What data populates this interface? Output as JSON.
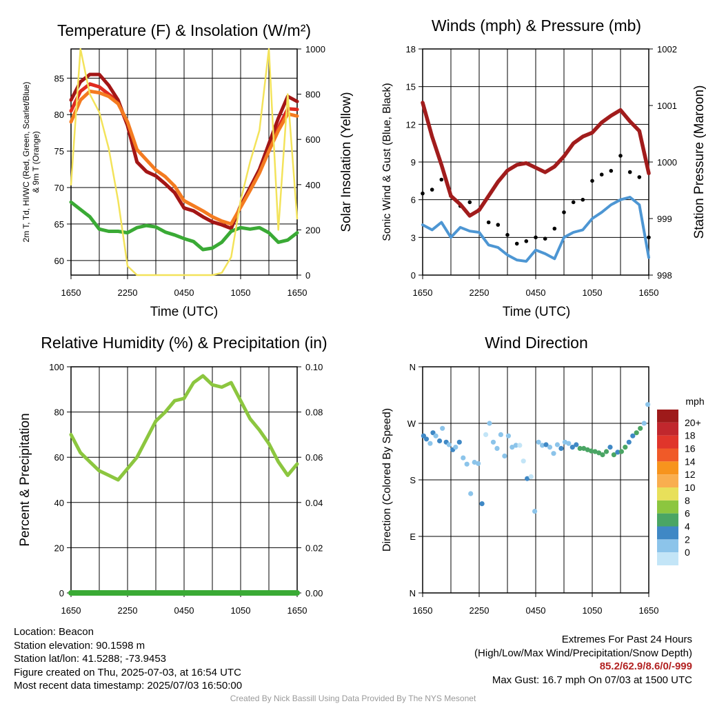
{
  "panels": {
    "temp": {
      "title": "Temperature (F) & Insolation (W/m²)",
      "xlabel": "Time (UTC)",
      "ylabel_left_line1": "2m T, Td, HI/WC (Red, Green, Scarlet/Blue)",
      "ylabel_left_line2": "& 9m T (Orange)",
      "ylabel_right": "Solar Insolation (Yellow)"
    },
    "wind": {
      "title": "Winds (mph) & Pressure (mb)",
      "xlabel": "Time (UTC)",
      "ylabel_left": "Sonic Wind & Gust (Blue, Black)",
      "ylabel_right": "Station Pressure (Maroon)"
    },
    "rh": {
      "title": "Relative Humidity (%) & Precipitation (in)",
      "ylabel_left": "Percent & Precipitation"
    },
    "dir": {
      "title": "Wind Direction",
      "ylabel_left": "Direction (Colored By Speed)",
      "legend_title": "mph"
    }
  },
  "chart_data": [
    {
      "type": "line",
      "title": "Temperature (F) & Insolation (W/m²)",
      "xlabel": "Time (UTC)",
      "x_ticks": [
        "1650",
        "2250",
        "0450",
        "1050",
        "1650"
      ],
      "ylim": [
        58,
        89
      ],
      "y_ticks": [
        60,
        65,
        70,
        75,
        80,
        85
      ],
      "y2lim": [
        0,
        1000
      ],
      "y2_ticks": [
        0,
        200,
        400,
        600,
        800,
        1000
      ],
      "x_hours": [
        0,
        1,
        2,
        3,
        4,
        5,
        6,
        7,
        8,
        9,
        10,
        11,
        12,
        13,
        14,
        15,
        16,
        17,
        18,
        19,
        20,
        21,
        22,
        23,
        24
      ],
      "series": [
        {
          "name": "2m T",
          "color": "#e02b20",
          "axis": "left",
          "values": [
            80.5,
            83.2,
            84.2,
            83.8,
            82.8,
            81.8,
            78.5,
            73.5,
            72.2,
            71.6,
            70.5,
            69.3,
            67.2,
            66.8,
            66.0,
            65.3,
            64.9,
            64.4,
            67.5,
            70.0,
            72.2,
            75.6,
            78.2,
            80.8,
            80.7
          ]
        },
        {
          "name": "HI/WC",
          "color": "#a31616",
          "axis": "left",
          "values": [
            82.0,
            84.5,
            85.5,
            85.5,
            84.0,
            82.0,
            78.5,
            73.5,
            72.2,
            71.6,
            70.5,
            69.3,
            67.2,
            66.8,
            66.0,
            65.3,
            64.9,
            64.4,
            67.5,
            70.0,
            72.5,
            76.0,
            79.5,
            82.5,
            81.8
          ]
        },
        {
          "name": "9m T",
          "color": "#f47b20",
          "axis": "left",
          "values": [
            79.0,
            82.0,
            83.2,
            83.0,
            82.5,
            81.5,
            79.0,
            75.2,
            73.8,
            72.4,
            71.5,
            70.2,
            68.2,
            67.5,
            66.8,
            66.0,
            65.4,
            65.0,
            67.3,
            69.6,
            72.0,
            75.0,
            77.8,
            80.1,
            79.8
          ]
        },
        {
          "name": "Td",
          "color": "#3aaa35",
          "axis": "left",
          "values": [
            68.0,
            67.0,
            66.0,
            64.3,
            64.0,
            64.0,
            63.8,
            64.5,
            64.8,
            64.6,
            63.9,
            63.5,
            63.0,
            62.6,
            61.5,
            61.7,
            62.5,
            64.0,
            64.5,
            64.3,
            64.5,
            63.8,
            62.5,
            62.8,
            63.8
          ]
        },
        {
          "name": "Solar Insolation",
          "color": "#f3e35a",
          "axis": "right",
          "values": [
            400,
            1000,
            800,
            720,
            560,
            330,
            40,
            0,
            0,
            0,
            0,
            0,
            0,
            0,
            0,
            0,
            10,
            80,
            330,
            500,
            640,
            1000,
            200,
            800,
            250
          ]
        }
      ]
    },
    {
      "type": "line",
      "title": "Winds (mph) & Pressure (mb)",
      "xlabel": "Time (UTC)",
      "x_ticks": [
        "1650",
        "2250",
        "0450",
        "1050",
        "1650"
      ],
      "ylim": [
        0,
        18
      ],
      "y_ticks": [
        0,
        3,
        6,
        9,
        12,
        15,
        18
      ],
      "y2lim": [
        998,
        1002
      ],
      "y2_ticks": [
        998,
        999,
        1000,
        1001,
        1002
      ],
      "x_hours": [
        0,
        1,
        2,
        3,
        4,
        5,
        6,
        7,
        8,
        9,
        10,
        11,
        12,
        13,
        14,
        15,
        16,
        17,
        18,
        19,
        20,
        21,
        22,
        23,
        24
      ],
      "series": [
        {
          "name": "Sonic Wind",
          "color": "#4d96d3",
          "axis": "left",
          "values": [
            4.0,
            3.6,
            4.2,
            3.0,
            3.8,
            3.5,
            3.4,
            2.4,
            2.2,
            1.6,
            1.2,
            1.1,
            2.0,
            1.7,
            1.3,
            3.0,
            3.4,
            3.6,
            4.5,
            5.0,
            5.6,
            6.0,
            6.2,
            5.6,
            1.4
          ]
        },
        {
          "name": "Gust",
          "color": "#000000",
          "axis": "left",
          "values": [
            6.5,
            6.8,
            7.6,
            6.3,
            5.5,
            5.8,
            5.2,
            4.2,
            4.0,
            3.2,
            2.5,
            2.7,
            3.0,
            2.9,
            3.7,
            5.0,
            5.8,
            6.0,
            7.5,
            8.0,
            8.3,
            9.5,
            8.2,
            7.8,
            3.0
          ]
        },
        {
          "name": "Station Pressure",
          "color": "#a11c1c",
          "axis": "right",
          "values": [
            1001.05,
            1000.45,
            999.95,
            999.4,
            999.25,
            999.05,
            999.15,
            999.4,
            999.65,
            999.85,
            999.95,
            999.98,
            999.9,
            999.82,
            999.92,
            1000.1,
            1000.33,
            1000.45,
            1000.52,
            1000.7,
            1000.82,
            1000.92,
            1000.72,
            1000.55,
            999.8
          ]
        }
      ]
    },
    {
      "type": "line",
      "title": "Relative Humidity (%) & Precipitation (in)",
      "x_ticks": [
        "1650",
        "2250",
        "0450",
        "1050",
        "1650"
      ],
      "ylim": [
        0,
        100
      ],
      "y_ticks": [
        0,
        20,
        40,
        60,
        80,
        100
      ],
      "y2lim": [
        0,
        0.1
      ],
      "y2_ticks": [
        "0.00",
        "0.02",
        "0.04",
        "0.06",
        "0.08",
        "0.10"
      ],
      "x_hours": [
        0,
        1,
        2,
        3,
        4,
        5,
        6,
        7,
        8,
        9,
        10,
        11,
        12,
        13,
        14,
        15,
        16,
        17,
        18,
        19,
        20,
        21,
        22,
        23,
        24
      ],
      "series": [
        {
          "name": "Relative Humidity",
          "color": "#8cc63f",
          "axis": "left",
          "values": [
            70,
            62,
            58,
            54,
            52,
            50,
            55,
            60,
            68,
            76,
            80,
            85,
            86,
            93,
            96,
            92,
            91,
            93,
            85,
            77,
            72,
            66,
            58,
            52,
            57
          ]
        },
        {
          "name": "Precipitation",
          "color": "#3aaa35",
          "axis": "right",
          "values": [
            0,
            0,
            0,
            0,
            0,
            0,
            0,
            0,
            0,
            0,
            0,
            0,
            0,
            0,
            0,
            0,
            0,
            0,
            0,
            0,
            0,
            0,
            0,
            0,
            0
          ]
        }
      ]
    },
    {
      "type": "scatter",
      "title": "Wind Direction",
      "x_ticks": [
        "1650",
        "2250",
        "0450",
        "1050",
        "1650"
      ],
      "y_ticks": [
        "N",
        "E",
        "S",
        "W",
        "N"
      ],
      "ylim": [
        0,
        360
      ],
      "colorbar": {
        "title": "mph",
        "labels": [
          "20+",
          "18",
          "16",
          "14",
          "12",
          "10",
          "8",
          "6",
          "4",
          "2",
          "0"
        ],
        "colors": [
          "#9e1a1a",
          "#c1272d",
          "#e0352b",
          "#f05a28",
          "#f7941d",
          "#f9ae4f",
          "#e8e05a",
          "#8cc63f",
          "#4aa564",
          "#3f88c5",
          "#8cc4ea",
          "#c3e5f7"
        ]
      },
      "series": [
        {
          "name": "Wind Direction",
          "x_hours": [
            0.1,
            0.4,
            0.8,
            1.1,
            1.4,
            1.8,
            2.1,
            2.5,
            2.8,
            3.2,
            3.5,
            3.9,
            4.3,
            4.7,
            5.1,
            5.5,
            5.9,
            6.3,
            6.7,
            7.1,
            7.5,
            7.9,
            8.3,
            8.7,
            9.1,
            9.5,
            9.9,
            10.3,
            10.7,
            11.1,
            11.5,
            11.9,
            12.3,
            12.7,
            13.1,
            13.5,
            13.9,
            14.3,
            14.7,
            15.1,
            15.5,
            15.9,
            16.3,
            16.7,
            17.1,
            17.5,
            17.9,
            18.3,
            18.7,
            19.1,
            19.5,
            19.9,
            20.3,
            20.7,
            21.1,
            21.5,
            21.9,
            22.3,
            22.7,
            23.1,
            23.5,
            23.9
          ],
          "directions": [
            250,
            245,
            238,
            255,
            250,
            242,
            262,
            240,
            236,
            228,
            232,
            240,
            215,
            205,
            158,
            208,
            206,
            142,
            252,
            270,
            240,
            230,
            252,
            218,
            250,
            232,
            235,
            235,
            210,
            182,
            185,
            130,
            240,
            235,
            236,
            232,
            222,
            236,
            230,
            240,
            238,
            232,
            236,
            230,
            230,
            228,
            226,
            225,
            223,
            220,
            225,
            232,
            220,
            224,
            225,
            232,
            240,
            250,
            255,
            262,
            270,
            300
          ],
          "speeds": [
            4,
            4,
            3,
            4,
            3,
            4,
            3,
            5,
            2,
            4,
            3,
            4,
            2,
            3,
            3,
            2,
            3,
            4,
            1,
            2,
            3,
            2,
            2,
            2,
            3,
            2,
            2,
            1,
            1,
            4,
            1,
            3,
            2,
            3,
            4,
            3,
            2,
            3,
            4,
            3,
            2,
            4,
            5,
            6,
            6,
            6,
            6,
            6,
            6,
            6,
            6,
            4,
            6,
            5,
            6,
            6,
            5,
            5,
            6,
            6,
            3,
            2
          ]
        }
      ]
    }
  ],
  "info": {
    "location": "Location: Beacon",
    "elevation": "Station elevation: 90.1598 m",
    "latlon": "Station lat/lon: 41.5288; -73.9453",
    "created": "Figure created on Thu, 2025-07-03, at 16:54 UTC",
    "recent": "Most recent data timestamp: 2025/07/03 16:50:00"
  },
  "extremes": {
    "heading": "Extremes For Past 24 Hours",
    "subheading": "(High/Low/Max Wind/Precipitation/Snow Depth)",
    "values": "85.2/62.9/8.6/0/-999",
    "gust": "Max Gust: 16.7 mph On 07/03 at 1500 UTC"
  },
  "credit": "Created By Nick Bassill Using Data Provided By The NYS Mesonet"
}
